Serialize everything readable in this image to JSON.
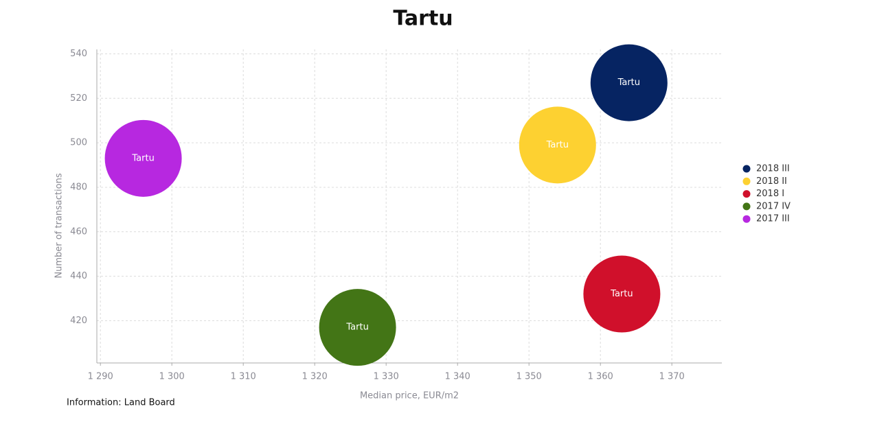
{
  "chart_data": {
    "type": "bubble",
    "title": "Tartu",
    "x_label": "Median price, EUR/m2",
    "y_label": "Number of transactions",
    "source": "Information: Land Board",
    "xlim": [
      1289.5,
      1377
    ],
    "ylim": [
      401,
      542
    ],
    "xticks": [
      {
        "value": 1290,
        "label": "1 290"
      },
      {
        "value": 1300,
        "label": "1 300"
      },
      {
        "value": 1310,
        "label": "1 310"
      },
      {
        "value": 1320,
        "label": "1 320"
      },
      {
        "value": 1330,
        "label": "1 330"
      },
      {
        "value": 1340,
        "label": "1 340"
      },
      {
        "value": 1350,
        "label": "1 350"
      },
      {
        "value": 1360,
        "label": "1 360"
      },
      {
        "value": 1370,
        "label": "1 370"
      }
    ],
    "yticks": [
      420,
      440,
      460,
      480,
      500,
      520,
      540
    ],
    "grid": true,
    "legend": "right",
    "series": [
      {
        "name": "2018 III",
        "color": "#062462",
        "x": [
          1364
        ],
        "values": [
          527
        ],
        "value_labels": [
          "Tartu"
        ]
      },
      {
        "name": "2018 II",
        "color": "#fdd131",
        "x": [
          1354
        ],
        "values": [
          499
        ],
        "value_labels": [
          "Tartu"
        ]
      },
      {
        "name": "2018 I",
        "color": "#d0102b",
        "x": [
          1363
        ],
        "values": [
          432
        ],
        "value_labels": [
          "Tartu"
        ]
      },
      {
        "name": "2017 IV",
        "color": "#437516",
        "x": [
          1326
        ],
        "values": [
          417
        ],
        "value_labels": [
          "Tartu"
        ]
      },
      {
        "name": "2017 III",
        "color": "#b728e0",
        "x": [
          1296
        ],
        "values": [
          493
        ],
        "value_labels": [
          "Tartu"
        ]
      }
    ]
  }
}
